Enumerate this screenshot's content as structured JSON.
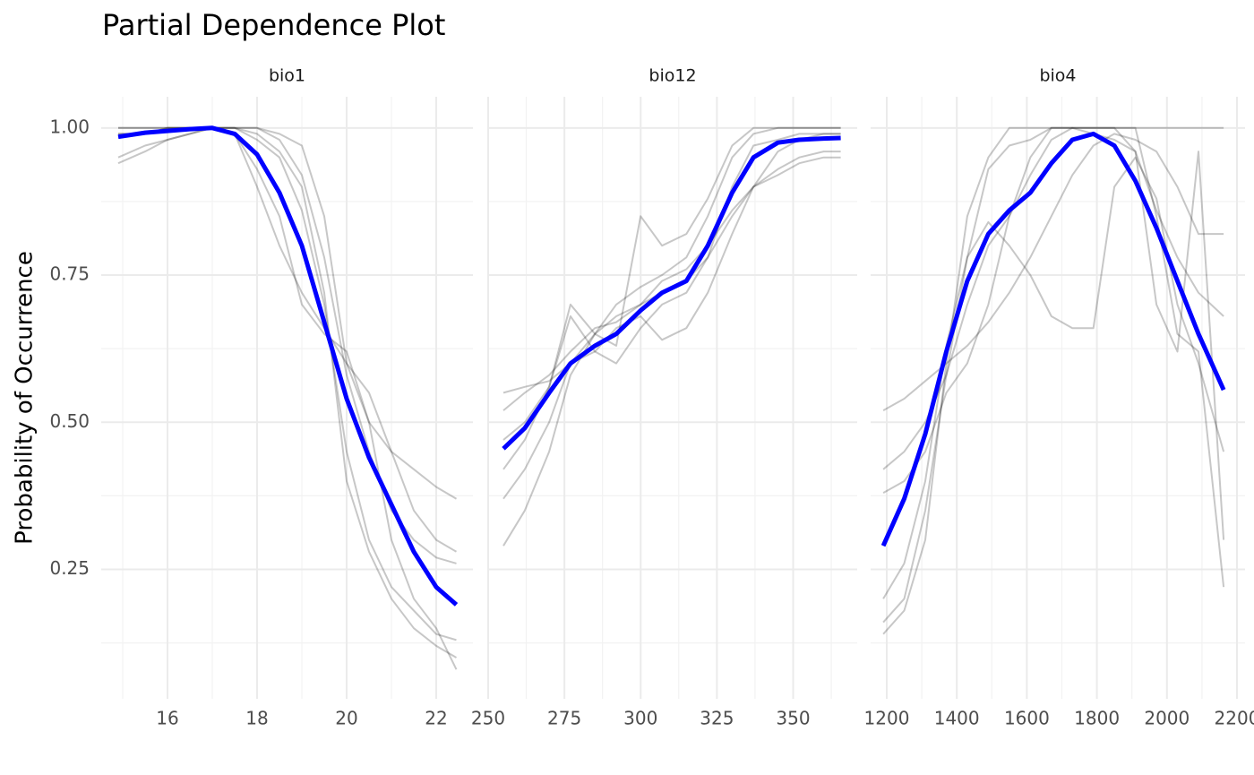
{
  "chart_data": {
    "type": "line",
    "title": "Partial Dependence Plot",
    "y_label": "Probability of Occurrence",
    "ylim": [
      0.03,
      1.053
    ],
    "yticks": [
      {
        "value": 0.25,
        "label": "0.25"
      },
      {
        "value": 0.5,
        "label": "0.50"
      },
      {
        "value": 0.75,
        "label": "0.75"
      },
      {
        "value": 1,
        "label": "1.00"
      }
    ],
    "yminor": [
      0.125,
      0.375,
      0.625,
      0.875
    ],
    "grid": true,
    "facets": [
      {
        "title": "bio1",
        "xlim": [
          14.52,
          22.82
        ],
        "xticks": [
          16,
          18,
          20,
          22
        ],
        "xminor": [
          15,
          17,
          19,
          21
        ],
        "x": [
          14.9,
          15.5,
          16,
          16.5,
          17,
          17.5,
          18,
          18.5,
          19,
          19.5,
          20,
          20.5,
          21,
          21.5,
          22,
          22.45
        ],
        "series": [
          {
            "color": "#000000",
            "alpha": 0.22,
            "width": 2,
            "values": [
              1,
              1,
              1,
              1,
              1,
              1,
              1,
              0.98,
              0.92,
              0.78,
              0.58,
              0.45,
              0.35,
              0.3,
              0.27,
              0.26
            ]
          },
          {
            "color": "#000000",
            "alpha": 0.22,
            "width": 2,
            "values": [
              0.95,
              0.97,
              0.98,
              0.99,
              1,
              0.99,
              0.9,
              0.8,
              0.72,
              0.66,
              0.6,
              0.55,
              0.45,
              0.35,
              0.3,
              0.28
            ]
          },
          {
            "color": "#000000",
            "alpha": 0.22,
            "width": 2,
            "values": [
              0.99,
              0.99,
              1,
              1,
              1,
              1,
              0.99,
              0.96,
              0.9,
              0.72,
              0.4,
              0.28,
              0.2,
              0.15,
              0.12,
              0.1
            ]
          },
          {
            "color": "#000000",
            "alpha": 0.22,
            "width": 2,
            "values": [
              0.94,
              0.96,
              0.98,
              0.99,
              1,
              1,
              1,
              0.99,
              0.97,
              0.85,
              0.6,
              0.5,
              0.45,
              0.42,
              0.39,
              0.37
            ]
          },
          {
            "color": "#000000",
            "alpha": 0.22,
            "width": 2,
            "values": [
              1,
              1,
              1,
              1,
              1,
              0.99,
              0.93,
              0.85,
              0.7,
              0.65,
              0.62,
              0.5,
              0.3,
              0.2,
              0.15,
              0.08
            ]
          },
          {
            "color": "#000000",
            "alpha": 0.22,
            "width": 2,
            "values": [
              0.99,
              0.99,
              1,
              1,
              1,
              1,
              0.98,
              0.95,
              0.86,
              0.7,
              0.45,
              0.3,
              0.22,
              0.18,
              0.14,
              0.13
            ]
          },
          {
            "color": "#0000ff",
            "alpha": 1,
            "width": 5,
            "values": [
              0.985,
              0.992,
              0.995,
              0.998,
              1,
              0.99,
              0.955,
              0.89,
              0.8,
              0.67,
              0.54,
              0.44,
              0.36,
              0.28,
              0.22,
              0.19
            ]
          }
        ]
      },
      {
        "title": "bio12",
        "xlim": [
          250,
          371
        ],
        "xticks": [
          250,
          275,
          300,
          325,
          350
        ],
        "xminor": [
          262.5,
          287.5,
          312.5,
          337.5,
          362.5
        ],
        "x": [
          255,
          262,
          270,
          277,
          285,
          292,
          300,
          307,
          315,
          322,
          330,
          337,
          345,
          352,
          360,
          365.6
        ],
        "series": [
          {
            "color": "#000000",
            "alpha": 0.22,
            "width": 2,
            "values": [
              0.29,
              0.35,
              0.45,
              0.58,
              0.65,
              0.7,
              0.73,
              0.75,
              0.78,
              0.85,
              0.95,
              0.99,
              1,
              1,
              1,
              1
            ]
          },
          {
            "color": "#000000",
            "alpha": 0.22,
            "width": 2,
            "values": [
              0.55,
              0.56,
              0.57,
              0.6,
              0.65,
              0.68,
              0.7,
              0.72,
              0.74,
              0.78,
              0.85,
              0.9,
              0.93,
              0.95,
              0.96,
              0.96
            ]
          },
          {
            "color": "#000000",
            "alpha": 0.22,
            "width": 2,
            "values": [
              0.47,
              0.5,
              0.56,
              0.7,
              0.65,
              0.63,
              0.85,
              0.8,
              0.82,
              0.88,
              0.97,
              1,
              1,
              1,
              1,
              1
            ]
          },
          {
            "color": "#000000",
            "alpha": 0.22,
            "width": 2,
            "values": [
              0.37,
              0.42,
              0.5,
              0.6,
              0.62,
              0.66,
              0.68,
              0.64,
              0.66,
              0.72,
              0.82,
              0.9,
              0.96,
              0.98,
              0.99,
              0.99
            ]
          },
          {
            "color": "#000000",
            "alpha": 0.22,
            "width": 2,
            "values": [
              0.52,
              0.55,
              0.58,
              0.62,
              0.66,
              0.67,
              0.7,
              0.74,
              0.76,
              0.8,
              0.86,
              0.9,
              0.92,
              0.94,
              0.95,
              0.95
            ]
          },
          {
            "color": "#000000",
            "alpha": 0.22,
            "width": 2,
            "values": [
              0.42,
              0.47,
              0.56,
              0.68,
              0.62,
              0.6,
              0.66,
              0.7,
              0.72,
              0.78,
              0.9,
              0.97,
              0.98,
              0.99,
              0.99,
              0.99
            ]
          },
          {
            "color": "#0000ff",
            "alpha": 1,
            "width": 5,
            "values": [
              0.455,
              0.49,
              0.55,
              0.6,
              0.63,
              0.65,
              0.69,
              0.72,
              0.74,
              0.8,
              0.89,
              0.95,
              0.975,
              0.98,
              0.982,
              0.983
            ]
          }
        ]
      },
      {
        "title": "bio4",
        "xlim": [
          1154,
          2223
        ],
        "xticks": [
          1200,
          1400,
          1600,
          1800,
          2000,
          2200
        ],
        "xminor": [
          1300,
          1500,
          1700,
          1900,
          2100
        ],
        "x": [
          1190,
          1250,
          1310,
          1370,
          1430,
          1490,
          1550,
          1610,
          1670,
          1730,
          1790,
          1850,
          1910,
          1970,
          2030,
          2090,
          2162
        ],
        "series": [
          {
            "color": "#000000",
            "alpha": 0.22,
            "width": 2,
            "values": [
              0.14,
              0.18,
              0.3,
              0.6,
              0.85,
              0.95,
              1,
              1,
              1,
              1,
              1,
              1,
              1,
              0.85,
              0.65,
              0.62,
              0.22
            ]
          },
          {
            "color": "#000000",
            "alpha": 0.22,
            "width": 2,
            "values": [
              0.52,
              0.54,
              0.57,
              0.6,
              0.63,
              0.67,
              0.72,
              0.78,
              0.85,
              0.92,
              0.97,
              0.99,
              0.98,
              0.96,
              0.9,
              0.82,
              0.82
            ]
          },
          {
            "color": "#000000",
            "alpha": 0.22,
            "width": 2,
            "values": [
              0.42,
              0.45,
              0.5,
              0.58,
              0.7,
              0.8,
              0.85,
              0.92,
              0.98,
              1,
              1,
              1,
              1,
              1,
              1,
              1,
              1
            ]
          },
          {
            "color": "#000000",
            "alpha": 0.22,
            "width": 2,
            "values": [
              0.2,
              0.26,
              0.4,
              0.63,
              0.78,
              0.84,
              0.8,
              0.75,
              0.68,
              0.66,
              0.66,
              0.9,
              0.95,
              0.88,
              0.7,
              0.6,
              0.45
            ]
          },
          {
            "color": "#000000",
            "alpha": 0.22,
            "width": 2,
            "values": [
              0.38,
              0.4,
              0.45,
              0.55,
              0.6,
              0.7,
              0.85,
              0.95,
              1,
              1,
              1,
              1,
              0.96,
              0.86,
              0.78,
              0.72,
              0.68
            ]
          },
          {
            "color": "#000000",
            "alpha": 0.22,
            "width": 2,
            "values": [
              0.16,
              0.2,
              0.35,
              0.58,
              0.78,
              0.93,
              0.97,
              0.98,
              1,
              1,
              0.99,
              0.98,
              0.96,
              0.7,
              0.62,
              0.96,
              0.3
            ]
          },
          {
            "color": "#0000ff",
            "alpha": 1,
            "width": 5,
            "values": [
              0.29,
              0.37,
              0.48,
              0.62,
              0.74,
              0.82,
              0.86,
              0.89,
              0.94,
              0.98,
              0.99,
              0.97,
              0.91,
              0.83,
              0.74,
              0.65,
              0.555
            ]
          }
        ]
      }
    ]
  }
}
